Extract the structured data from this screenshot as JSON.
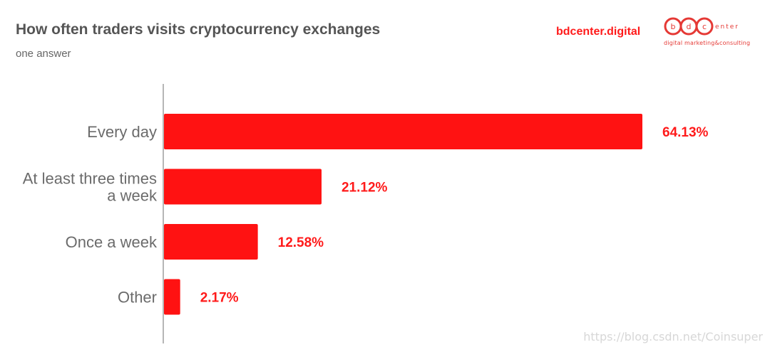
{
  "header": {
    "title": "How often traders visits cryptocurrency exchanges",
    "subtitle": "one answer",
    "brand": "bdcenter.digital",
    "logo_letters": [
      "b",
      "d",
      "c"
    ],
    "logo_text": "enter",
    "logo_tagline": "digital marketing&consulting"
  },
  "watermark": "https://blog.csdn.net/Coinsuper",
  "colors": {
    "bar": "#ff1212",
    "value_label": "#ff1a1a",
    "axis": "#9e9e9e",
    "brand": "#ff1a1a"
  },
  "chart_data": {
    "type": "bar",
    "orientation": "horizontal",
    "title": "How often traders visits cryptocurrency exchanges",
    "subtitle": "one answer",
    "categories": [
      [
        "Every day"
      ],
      [
        "At least three times",
        "a week"
      ],
      [
        "Once a week"
      ],
      [
        "Other"
      ]
    ],
    "values": [
      64.13,
      21.12,
      12.58,
      2.17
    ],
    "value_labels": [
      "64.13%",
      "21.12%",
      "12.58%",
      "2.17%"
    ],
    "unit": "%",
    "xlim": [
      0,
      64.13
    ],
    "grid": false,
    "legend": "none"
  }
}
